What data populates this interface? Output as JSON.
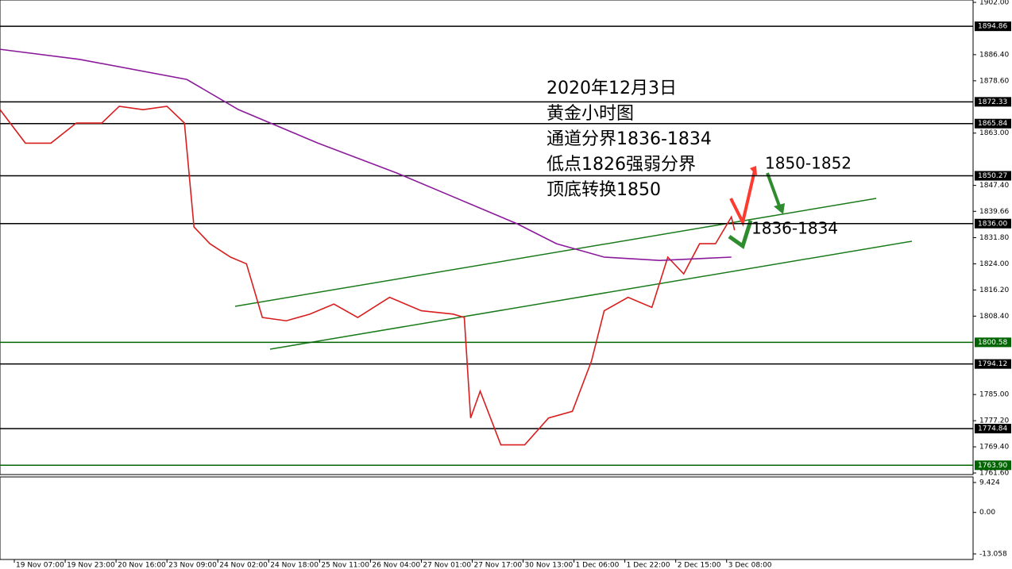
{
  "chart_data": {
    "type": "line",
    "annotations": [
      "2020年12月3日",
      "黄金小时图",
      "通道分界1836-1834",
      "低点1826强弱分界",
      "顶底转换1850",
      "1850-1852",
      "1836-1834"
    ],
    "series": [
      {
        "color": "#d81e1e",
        "x": [
          0,
          8,
          16,
          24,
          32,
          37.5,
          45,
          52.5,
          58,
          61,
          66,
          72.5,
          77.5,
          82.5,
          90,
          97.5,
          105,
          112.5,
          122.5,
          132.5,
          142.5,
          146,
          148,
          151,
          157.5,
          165,
          172.5,
          180,
          186,
          190,
          197.5,
          205,
          210,
          215,
          220,
          225,
          230,
          231
        ],
        "values": [
          1870,
          1860,
          1860,
          1866,
          1866,
          1871,
          1870,
          1871,
          1866,
          1835,
          1830,
          1826,
          1824,
          1808,
          1807,
          1809,
          1812,
          1808,
          1814,
          1810,
          1809,
          1808,
          1778,
          1786,
          1770,
          1770,
          1778,
          1780,
          1795,
          1810,
          1814,
          1811,
          1826,
          1821,
          1830,
          1830,
          1838,
          1834
        ]
      },
      {
        "color": "#8b1a9b",
        "x": [
          0,
          25,
          58.75,
          75,
          100,
          125,
          145,
          162.5,
          175,
          190,
          207.5,
          230
        ],
        "values": [
          1888,
          1885,
          1879,
          1870,
          1860,
          1851,
          1843,
          1836,
          1830,
          1826,
          1825,
          1826
        ]
      }
    ],
    "levels": [
      {
        "value": 1894.86,
        "label": "1894.86",
        "color": "#000000"
      },
      {
        "value": 1872.33,
        "label": "1872.33",
        "color": "#000000"
      },
      {
        "value": 1865.84,
        "label": "1865.84",
        "color": "#000000"
      },
      {
        "value": 1850.27,
        "label": "1850.27",
        "color": "#000000"
      },
      {
        "value": 1836.0,
        "label": "1836.00",
        "color": "#000000"
      },
      {
        "value": 1800.58,
        "label": "1800.58",
        "color": "#006400"
      },
      {
        "value": 1794.12,
        "label": "1794.12",
        "color": "#000000"
      },
      {
        "value": 1774.84,
        "label": "1774.84",
        "color": "#000000"
      },
      {
        "value": 1763.9,
        "label": "1763.90",
        "color": "#006400"
      }
    ],
    "xlim": [
      0,
      306
    ],
    "ylim": [
      1761.6,
      1902.0
    ],
    "yticks": [
      {
        "value": 1902.0,
        "label": "1902.00"
      },
      {
        "value": 1886.4,
        "label": "1886.40"
      },
      {
        "value": 1878.6,
        "label": "1878.60"
      },
      {
        "value": 1863.0,
        "label": "1863.00"
      },
      {
        "value": 1847.4,
        "label": "1847.40"
      },
      {
        "value": 1839.66,
        "label": "1839.66"
      },
      {
        "value": 1831.8,
        "label": "1831.80"
      },
      {
        "value": 1824.0,
        "label": "1824.00"
      },
      {
        "value": 1816.2,
        "label": "1816.20"
      },
      {
        "value": 1808.4,
        "label": "1808.40"
      },
      {
        "value": 1785.0,
        "label": "1785.00"
      },
      {
        "value": 1777.2,
        "label": "1777.20"
      },
      {
        "value": 1769.4,
        "label": "1769.40"
      },
      {
        "value": 1761.6,
        "label": "1761.60"
      }
    ],
    "xticks": [
      {
        "value": 4.5,
        "label": "19 Nov 07:00"
      },
      {
        "value": 20.5,
        "label": "19 Nov 23:00"
      },
      {
        "value": 36.5,
        "label": "20 Nov 16:00"
      },
      {
        "value": 52.5,
        "label": "23 Nov 09:00"
      },
      {
        "value": 68.5,
        "label": "24 Nov 02:00"
      },
      {
        "value": 84.5,
        "label": "24 Nov 18:00"
      },
      {
        "value": 100.5,
        "label": "25 Nov 11:00"
      },
      {
        "value": 116.5,
        "label": "26 Nov 04:00"
      },
      {
        "value": 132.5,
        "label": "27 Nov 01:00"
      },
      {
        "value": 148.5,
        "label": "27 Nov 17:00"
      },
      {
        "value": 164.5,
        "label": "30 Nov 13:00"
      },
      {
        "value": 180.5,
        "label": "1 Dec 06:00"
      },
      {
        "value": 196.5,
        "label": "1 Dec 22:00"
      },
      {
        "value": 212.5,
        "label": "2 Dec 15:00"
      },
      {
        "value": 228.5,
        "label": "3 Dec 08:00"
      }
    ],
    "oscillator": {
      "ylim": [
        -13.058,
        9.424
      ],
      "yticks": [
        {
          "value": 9.424,
          "label": "9.424"
        },
        {
          "value": 0,
          "label": "0.00"
        },
        {
          "value": -13.058,
          "label": "-13.058"
        }
      ]
    }
  }
}
